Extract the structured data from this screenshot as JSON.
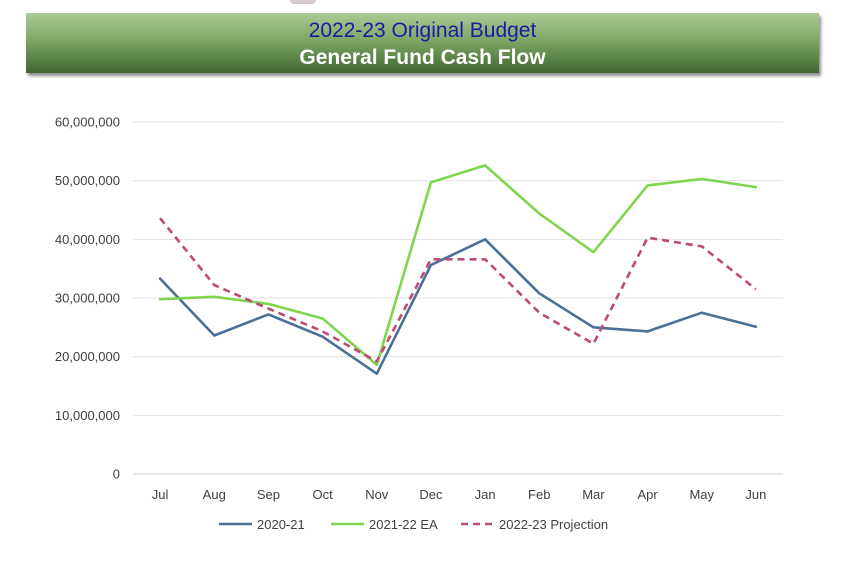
{
  "header": {
    "line1": "2022-23 Original Budget",
    "line2": "General Fund Cash Flow"
  },
  "chart_data": {
    "type": "line",
    "categories": [
      "Jul",
      "Aug",
      "Sep",
      "Oct",
      "Nov",
      "Dec",
      "Jan",
      "Feb",
      "Mar",
      "Apr",
      "May",
      "Jun"
    ],
    "ylim": [
      0,
      60000000
    ],
    "yticks": [
      0,
      10000000,
      20000000,
      30000000,
      40000000,
      50000000,
      60000000
    ],
    "ytick_labels": [
      "0",
      "10,000,000",
      "20,000,000",
      "30,000,000",
      "40,000,000",
      "50,000,000",
      "60,000,000"
    ],
    "grid": true,
    "legend_position": "bottom",
    "series": [
      {
        "name": "2020-21",
        "color": "#4a7098",
        "style": "solid",
        "values": [
          33300000,
          23600000,
          27200000,
          23400000,
          17100000,
          35600000,
          40000000,
          30800000,
          25000000,
          24300000,
          27500000,
          25100000
        ]
      },
      {
        "name": "2021-22 EA",
        "color": "#7fd64e",
        "style": "solid",
        "values": [
          29800000,
          30200000,
          29000000,
          26500000,
          18600000,
          49700000,
          52600000,
          44400000,
          37800000,
          49200000,
          50300000,
          48900000
        ]
      },
      {
        "name": "2022-23 Projection",
        "color": "#bd4a77",
        "style": "dashed",
        "values": [
          43600000,
          32200000,
          28200000,
          24300000,
          19200000,
          36600000,
          36600000,
          27500000,
          22200000,
          40300000,
          38800000,
          31500000
        ]
      }
    ]
  }
}
